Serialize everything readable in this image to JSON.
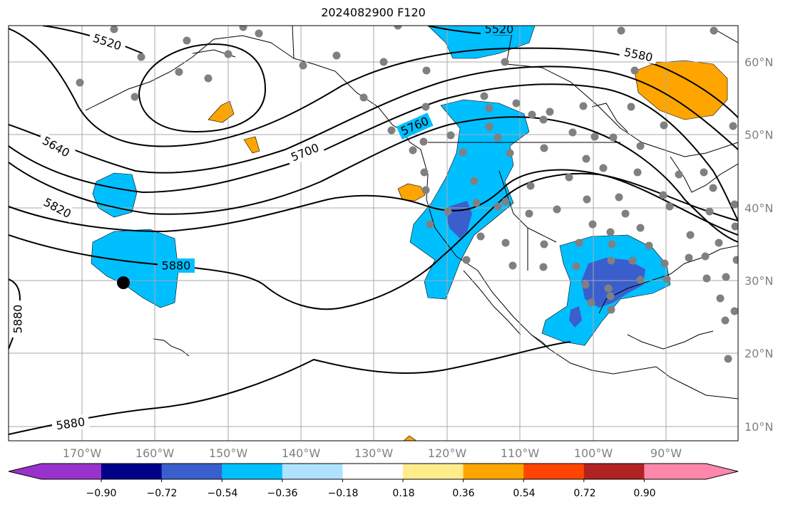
{
  "title": "2024082900 F120",
  "lon_labels": [
    "170°W",
    "160°W",
    "150°W",
    "140°W",
    "130°W",
    "120°W",
    "110°W",
    "100°W",
    "90°W"
  ],
  "lat_labels": [
    "60°N",
    "50°N",
    "40°N",
    "30°N",
    "20°N",
    "10°N"
  ],
  "contour_labels": [
    "5520",
    "5520",
    "5580",
    "5640",
    "5700",
    "5760",
    "5820",
    "5880",
    "5880",
    "5880"
  ],
  "colorbar": {
    "ticks": [
      "−0.90",
      "−0.72",
      "−0.54",
      "−0.36",
      "−0.18",
      "0.18",
      "0.36",
      "0.54",
      "0.72",
      "0.90"
    ],
    "colors": [
      "#9932CC",
      "#00008B",
      "#3A5FCD",
      "#00BFFF",
      "#B0E2FF",
      "#FFFFFF",
      "#FFEC8B",
      "#FFA500",
      "#FF4500",
      "#B22222",
      "#FF88AA"
    ]
  },
  "colors": {
    "neg_light": "#00BFFF",
    "neg_strong": "#3A5FCD",
    "pos_light": "#FFA500",
    "pos_pale": "#FFEC8B",
    "grid": "#aaaaaa",
    "station": "#808080",
    "marker": "#000000"
  }
}
